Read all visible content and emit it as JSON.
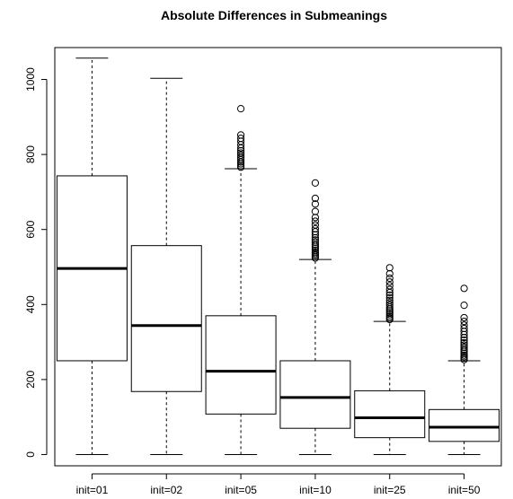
{
  "chart_data": {
    "type": "box",
    "title": "Absolute Differences in Submeanings",
    "xlabel": "",
    "ylabel": "",
    "ylim": [
      -30,
      1085
    ],
    "yticks": [
      0,
      200,
      400,
      600,
      800,
      1000
    ],
    "grid": false,
    "categories": [
      "init=01",
      "init=02",
      "init=05",
      "init=10",
      "init=25",
      "init=50"
    ],
    "boxes": [
      {
        "category": "init=01",
        "min": 0,
        "q1": 250,
        "median": 496,
        "q3": 743,
        "max": 1057,
        "outliers": []
      },
      {
        "category": "init=02",
        "min": 0,
        "q1": 168,
        "median": 344,
        "q3": 557,
        "max": 1003,
        "outliers": []
      },
      {
        "category": "init=05",
        "min": 0,
        "q1": 108,
        "median": 222,
        "q3": 370,
        "max": 762,
        "outliers": [
          922,
          852,
          843,
          835,
          826,
          817,
          810,
          804,
          798,
          792,
          786,
          780,
          775,
          770,
          766
        ]
      },
      {
        "category": "init=10",
        "min": 0,
        "q1": 70,
        "median": 152,
        "q3": 250,
        "max": 520,
        "outliers": [
          724,
          683,
          668,
          648,
          632,
          622,
          612,
          602,
          594,
          586,
          578,
          572,
          566,
          560,
          555,
          550,
          545,
          540,
          536,
          532,
          528,
          524
        ]
      },
      {
        "category": "init=25",
        "min": 0,
        "q1": 45,
        "median": 98,
        "q3": 170,
        "max": 355,
        "outliers": [
          498,
          482,
          470,
          460,
          450,
          440,
          432,
          425,
          418,
          411,
          405,
          399,
          393,
          388,
          383,
          378,
          373,
          368,
          364,
          360
        ]
      },
      {
        "category": "init=50",
        "min": 0,
        "q1": 35,
        "median": 73,
        "q3": 120,
        "max": 250,
        "outliers": [
          443,
          398,
          365,
          355,
          345,
          336,
          328,
          320,
          312,
          305,
          298,
          292,
          286,
          280,
          275,
          270,
          265,
          261,
          257,
          253
        ]
      }
    ]
  }
}
